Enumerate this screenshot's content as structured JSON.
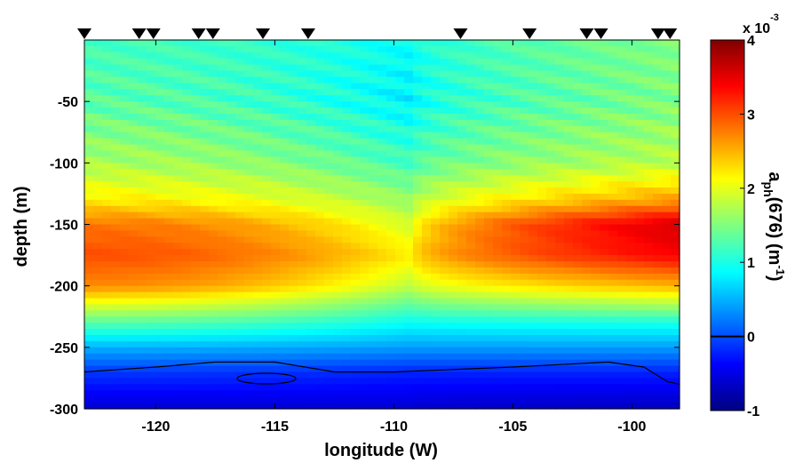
{
  "chart_data": {
    "type": "heatmap",
    "xlabel": "longitude (W)",
    "ylabel": "depth (m)",
    "xlim": [
      -123,
      -98
    ],
    "ylim": [
      -300,
      0
    ],
    "x_ticks": [
      -120,
      -115,
      -110,
      -105,
      -100
    ],
    "y_ticks": [
      -50,
      -100,
      -150,
      -200,
      -250,
      -300
    ],
    "colorbar": {
      "label_main": "a",
      "label_sub": "ph",
      "label_rest": "(676)  (m",
      "label_exp": "-1",
      "label_close": ")",
      "multiplier_prefix": "x 10",
      "multiplier_exp": "-3",
      "range": [
        -1,
        4
      ],
      "ticks": [
        -1,
        0,
        1,
        2,
        3,
        4
      ],
      "zero_line": true
    },
    "station_markers_longitude": [
      -123,
      -120.7,
      -120.1,
      -118.2,
      -117.6,
      -115.5,
      -113.6,
      -107.2,
      -104.3,
      -101.9,
      -101.3,
      -98.9,
      -98.4
    ],
    "contour_zero_depth_approx": [
      [
        -123,
        -270
      ],
      [
        -120,
        -266
      ],
      [
        -117.5,
        -262
      ],
      [
        -115,
        -262
      ],
      [
        -112.5,
        -270
      ],
      [
        -110,
        -270
      ],
      [
        -105,
        -266
      ],
      [
        -101,
        -262
      ],
      [
        -99.5,
        -266
      ],
      [
        -98.5,
        -278
      ],
      [
        -98,
        -280
      ]
    ],
    "profile_note": "values in units of 1e-3 m^-1",
    "depth_profile": {
      "depths": [
        0,
        -50,
        -100,
        -130,
        -150,
        -175,
        -200,
        -230,
        -250,
        -270,
        -300
      ],
      "value_west": [
        1.2,
        1.3,
        1.7,
        2.2,
        2.8,
        3.0,
        2.7,
        1.3,
        0.5,
        -0.1,
        -0.6
      ],
      "value_central": [
        0.9,
        0.8,
        1.2,
        1.6,
        1.9,
        2.2,
        1.8,
        0.9,
        0.4,
        -0.2,
        -0.6
      ],
      "value_east": [
        1.5,
        1.5,
        1.8,
        2.6,
        3.6,
        3.4,
        2.5,
        1.0,
        0.4,
        -0.2,
        -0.7
      ]
    }
  }
}
